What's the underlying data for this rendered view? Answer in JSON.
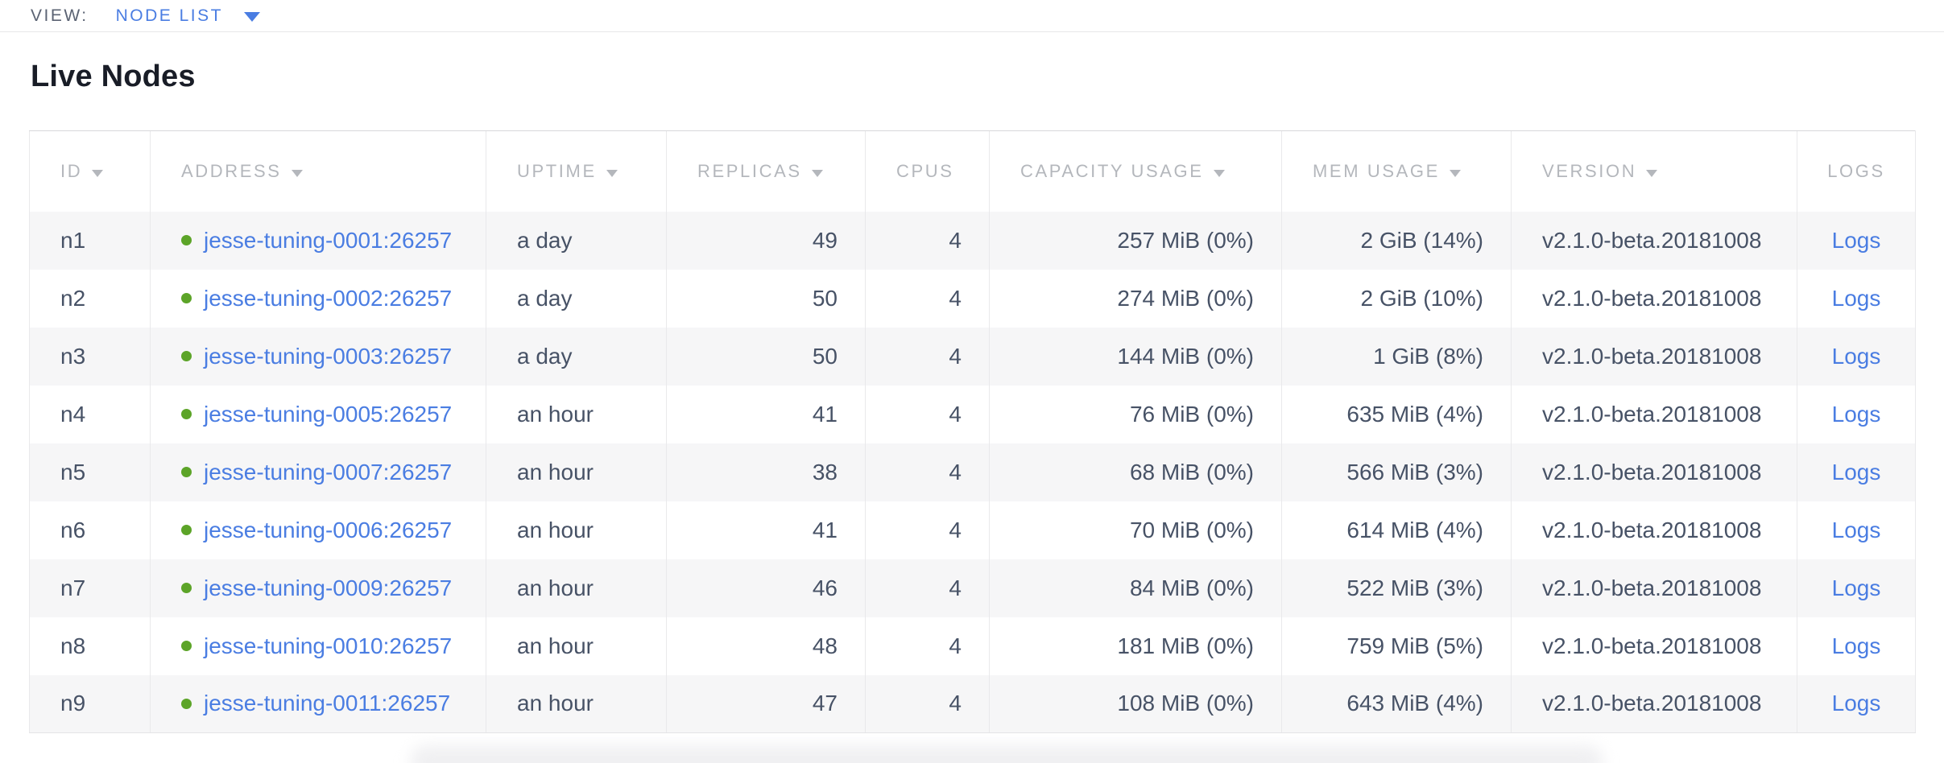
{
  "view_bar": {
    "label": "VIEW:",
    "selected": "NODE LIST"
  },
  "page": {
    "title": "Live Nodes"
  },
  "table": {
    "columns": [
      {
        "key": "id",
        "label": "ID",
        "sortable": true
      },
      {
        "key": "address",
        "label": "ADDRESS",
        "sortable": true
      },
      {
        "key": "uptime",
        "label": "UPTIME",
        "sortable": true
      },
      {
        "key": "replicas",
        "label": "REPLICAS",
        "sortable": true
      },
      {
        "key": "cpus",
        "label": "CPUS",
        "sortable": false
      },
      {
        "key": "capacity",
        "label": "CAPACITY USAGE",
        "sortable": true
      },
      {
        "key": "mem",
        "label": "MEM USAGE",
        "sortable": true
      },
      {
        "key": "version",
        "label": "VERSION",
        "sortable": true
      },
      {
        "key": "logs",
        "label": "LOGS",
        "sortable": false
      }
    ],
    "rows": [
      {
        "id": "n1",
        "status": "live",
        "address": "jesse-tuning-0001:26257",
        "uptime": "a day",
        "replicas": "49",
        "cpus": "4",
        "capacity": "257 MiB (0%)",
        "mem": "2 GiB (14%)",
        "version": "v2.1.0-beta.20181008",
        "logs": "Logs"
      },
      {
        "id": "n2",
        "status": "live",
        "address": "jesse-tuning-0002:26257",
        "uptime": "a day",
        "replicas": "50",
        "cpus": "4",
        "capacity": "274 MiB (0%)",
        "mem": "2 GiB (10%)",
        "version": "v2.1.0-beta.20181008",
        "logs": "Logs"
      },
      {
        "id": "n3",
        "status": "live",
        "address": "jesse-tuning-0003:26257",
        "uptime": "a day",
        "replicas": "50",
        "cpus": "4",
        "capacity": "144 MiB (0%)",
        "mem": "1 GiB (8%)",
        "version": "v2.1.0-beta.20181008",
        "logs": "Logs"
      },
      {
        "id": "n4",
        "status": "live",
        "address": "jesse-tuning-0005:26257",
        "uptime": "an hour",
        "replicas": "41",
        "cpus": "4",
        "capacity": "76 MiB (0%)",
        "mem": "635 MiB (4%)",
        "version": "v2.1.0-beta.20181008",
        "logs": "Logs"
      },
      {
        "id": "n5",
        "status": "live",
        "address": "jesse-tuning-0007:26257",
        "uptime": "an hour",
        "replicas": "38",
        "cpus": "4",
        "capacity": "68 MiB (0%)",
        "mem": "566 MiB (3%)",
        "version": "v2.1.0-beta.20181008",
        "logs": "Logs"
      },
      {
        "id": "n6",
        "status": "live",
        "address": "jesse-tuning-0006:26257",
        "uptime": "an hour",
        "replicas": "41",
        "cpus": "4",
        "capacity": "70 MiB (0%)",
        "mem": "614 MiB (4%)",
        "version": "v2.1.0-beta.20181008",
        "logs": "Logs"
      },
      {
        "id": "n7",
        "status": "live",
        "address": "jesse-tuning-0009:26257",
        "uptime": "an hour",
        "replicas": "46",
        "cpus": "4",
        "capacity": "84 MiB (0%)",
        "mem": "522 MiB (3%)",
        "version": "v2.1.0-beta.20181008",
        "logs": "Logs"
      },
      {
        "id": "n8",
        "status": "live",
        "address": "jesse-tuning-0010:26257",
        "uptime": "an hour",
        "replicas": "48",
        "cpus": "4",
        "capacity": "181 MiB (0%)",
        "mem": "759 MiB (5%)",
        "version": "v2.1.0-beta.20181008",
        "logs": "Logs"
      },
      {
        "id": "n9",
        "status": "live",
        "address": "jesse-tuning-0011:26257",
        "uptime": "an hour",
        "replicas": "47",
        "cpus": "4",
        "capacity": "108 MiB (0%)",
        "mem": "643 MiB (4%)",
        "version": "v2.1.0-beta.20181008",
        "logs": "Logs"
      }
    ]
  },
  "colors": {
    "accent_blue": "#4a7de2",
    "live_green": "#5ca428",
    "header_gray": "#b4b7bc",
    "text_slate": "#475266",
    "row_stripe": "#f6f6f7"
  }
}
